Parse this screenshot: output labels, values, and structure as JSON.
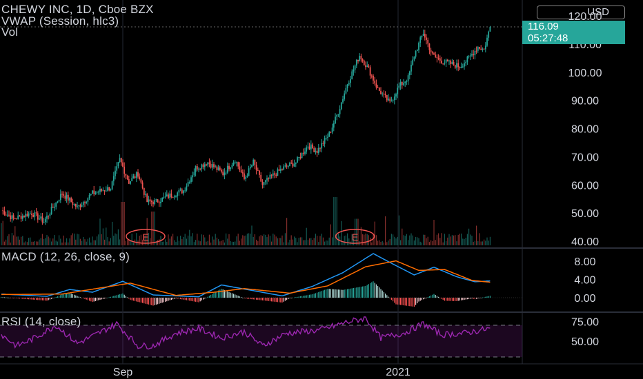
{
  "header": {
    "symbol_line": "CHEWY INC, 1D, Cboe BZX",
    "vwap_line": "VWAP (Session, hlc3)",
    "vol_line": "Vol",
    "currency": "USD"
  },
  "price_tag": {
    "last_price": "116.09",
    "countdown": "05:27:48"
  },
  "earnings_marker": "E",
  "colors": {
    "up": "#26a69a",
    "down": "#ef5350",
    "macd": "#2196f3",
    "signal": "#ff6d00",
    "rsi": "#9c27b0",
    "background": "#000000"
  },
  "chart_data": [
    {
      "type": "candlestick",
      "panel": "price",
      "yticks": [
        "120.00",
        "110.00",
        "100.00",
        "90.00",
        "80.00",
        "70.00",
        "60.00",
        "50.00",
        "40.00"
      ],
      "ylim": [
        40,
        121
      ],
      "xticks": [
        "Sep",
        "2021"
      ],
      "anchors": [
        {
          "t": 0,
          "v": 51
        },
        {
          "t": 8,
          "v": 48
        },
        {
          "t": 20,
          "v": 50
        },
        {
          "t": 28,
          "v": 47
        },
        {
          "t": 40,
          "v": 57
        },
        {
          "t": 50,
          "v": 52
        },
        {
          "t": 60,
          "v": 57
        },
        {
          "t": 72,
          "v": 59
        },
        {
          "t": 78,
          "v": 69
        },
        {
          "t": 84,
          "v": 61
        },
        {
          "t": 90,
          "v": 64
        },
        {
          "t": 96,
          "v": 54
        },
        {
          "t": 102,
          "v": 54
        },
        {
          "t": 110,
          "v": 56
        },
        {
          "t": 120,
          "v": 58
        },
        {
          "t": 128,
          "v": 66
        },
        {
          "t": 136,
          "v": 68
        },
        {
          "t": 146,
          "v": 64
        },
        {
          "t": 154,
          "v": 69
        },
        {
          "t": 160,
          "v": 62
        },
        {
          "t": 166,
          "v": 68
        },
        {
          "t": 172,
          "v": 60
        },
        {
          "t": 178,
          "v": 63
        },
        {
          "t": 186,
          "v": 66
        },
        {
          "t": 194,
          "v": 68
        },
        {
          "t": 202,
          "v": 74
        },
        {
          "t": 208,
          "v": 72
        },
        {
          "t": 216,
          "v": 78
        },
        {
          "t": 222,
          "v": 86
        },
        {
          "t": 228,
          "v": 96
        },
        {
          "t": 236,
          "v": 106
        },
        {
          "t": 242,
          "v": 101
        },
        {
          "t": 248,
          "v": 94
        },
        {
          "t": 256,
          "v": 89
        },
        {
          "t": 262,
          "v": 95
        },
        {
          "t": 268,
          "v": 98
        },
        {
          "t": 272,
          "v": 106
        },
        {
          "t": 278,
          "v": 114
        },
        {
          "t": 284,
          "v": 106
        },
        {
          "t": 290,
          "v": 104
        },
        {
          "t": 296,
          "v": 103
        },
        {
          "t": 302,
          "v": 102
        },
        {
          "t": 308,
          "v": 105
        },
        {
          "t": 314,
          "v": 109
        },
        {
          "t": 318,
          "v": 108
        },
        {
          "t": 322,
          "v": 116.09
        }
      ],
      "volume_spikes": [
        {
          "t": 80,
          "v": 0.9
        },
        {
          "t": 100,
          "v": 0.7
        },
        {
          "t": 220,
          "v": 1.0
        },
        {
          "t": 234,
          "v": 0.55
        }
      ],
      "earnings_at": [
        95,
        233
      ]
    },
    {
      "type": "line",
      "panel": "macd",
      "title": "MACD (12, 26, close, 9)",
      "yticks": [
        "8.00",
        "4.00",
        "0.00"
      ],
      "ylim": [
        -2,
        10
      ],
      "macd_anchors": [
        {
          "t": 0,
          "v": 0.8
        },
        {
          "t": 30,
          "v": 0.3
        },
        {
          "t": 45,
          "v": 1.8
        },
        {
          "t": 60,
          "v": 1.2
        },
        {
          "t": 80,
          "v": 3.6
        },
        {
          "t": 100,
          "v": 0.6
        },
        {
          "t": 130,
          "v": 0.2
        },
        {
          "t": 145,
          "v": 2.8
        },
        {
          "t": 165,
          "v": 1.6
        },
        {
          "t": 185,
          "v": 0.4
        },
        {
          "t": 205,
          "v": 2.5
        },
        {
          "t": 225,
          "v": 5.5
        },
        {
          "t": 245,
          "v": 9.7
        },
        {
          "t": 258,
          "v": 7.4
        },
        {
          "t": 272,
          "v": 5.0
        },
        {
          "t": 285,
          "v": 6.7
        },
        {
          "t": 300,
          "v": 4.6
        },
        {
          "t": 312,
          "v": 3.5
        },
        {
          "t": 322,
          "v": 3.7
        }
      ],
      "signal_anchors": [
        {
          "t": 0,
          "v": 0.7
        },
        {
          "t": 40,
          "v": 0.8
        },
        {
          "t": 85,
          "v": 3.2
        },
        {
          "t": 115,
          "v": 0.5
        },
        {
          "t": 140,
          "v": 1.2
        },
        {
          "t": 160,
          "v": 2.0
        },
        {
          "t": 190,
          "v": 1.0
        },
        {
          "t": 215,
          "v": 2.6
        },
        {
          "t": 240,
          "v": 6.8
        },
        {
          "t": 260,
          "v": 8.1
        },
        {
          "t": 275,
          "v": 6.0
        },
        {
          "t": 292,
          "v": 6.2
        },
        {
          "t": 310,
          "v": 3.8
        },
        {
          "t": 322,
          "v": 3.4
        }
      ]
    },
    {
      "type": "line",
      "panel": "rsi",
      "title": "RSI (14, close)",
      "yticks": [
        "75.00",
        "50.00"
      ],
      "ylim": [
        25,
        85
      ],
      "bands": [
        30,
        70
      ],
      "anchors": [
        {
          "t": 0,
          "v": 58
        },
        {
          "t": 10,
          "v": 44
        },
        {
          "t": 20,
          "v": 52
        },
        {
          "t": 36,
          "v": 70
        },
        {
          "t": 50,
          "v": 47
        },
        {
          "t": 62,
          "v": 58
        },
        {
          "t": 76,
          "v": 72
        },
        {
          "t": 90,
          "v": 44
        },
        {
          "t": 100,
          "v": 44
        },
        {
          "t": 115,
          "v": 60
        },
        {
          "t": 130,
          "v": 66
        },
        {
          "t": 145,
          "v": 54
        },
        {
          "t": 160,
          "v": 62
        },
        {
          "t": 172,
          "v": 44
        },
        {
          "t": 188,
          "v": 60
        },
        {
          "t": 210,
          "v": 64
        },
        {
          "t": 228,
          "v": 74
        },
        {
          "t": 240,
          "v": 79
        },
        {
          "t": 250,
          "v": 54
        },
        {
          "t": 265,
          "v": 60
        },
        {
          "t": 278,
          "v": 72
        },
        {
          "t": 290,
          "v": 58
        },
        {
          "t": 305,
          "v": 60
        },
        {
          "t": 322,
          "v": 66
        }
      ]
    }
  ]
}
